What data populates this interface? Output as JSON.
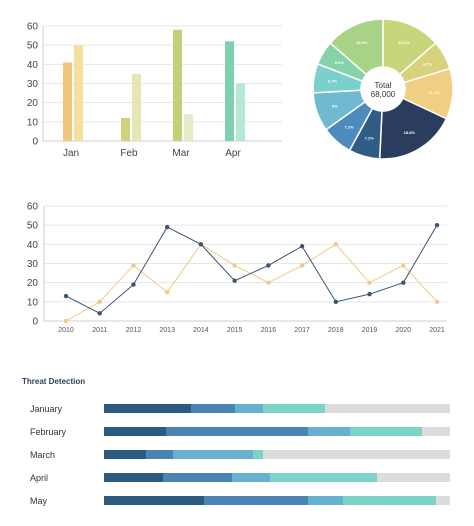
{
  "chart_data": [
    {
      "type": "bar",
      "categories": [
        "Jan",
        "Feb",
        "Mar",
        "Apr"
      ],
      "ylim": [
        0,
        60
      ],
      "yticks": [
        0,
        10,
        20,
        30,
        40,
        50,
        60
      ],
      "grid": true,
      "series": [
        {
          "values": [
            41,
            12,
            58,
            52
          ],
          "colors": [
            "#f2c77b",
            "#cfd27a",
            "#c2d077",
            "#7fd0ac"
          ]
        },
        {
          "values": [
            50,
            35,
            14,
            30
          ],
          "colors": [
            "#f6de9c",
            "#e6e7b5",
            "#e6eac6",
            "#b5e9d2"
          ]
        }
      ]
    },
    {
      "type": "pie",
      "center_label": "Total",
      "center_value": "68,000",
      "slices": [
        {
          "label": "13.6%",
          "value": 13.6,
          "color": "#c7d57b"
        },
        {
          "label": "6.7%",
          "value": 6.7,
          "color": "#d8d27d"
        },
        {
          "label": "11.7%",
          "value": 11.7,
          "color": "#f0cf84"
        },
        {
          "label": "18.8%",
          "value": 18.8,
          "color": "#2b3d5f"
        },
        {
          "label": "7.2%",
          "value": 7.2,
          "color": "#2f5d86"
        },
        {
          "label": "7.2%",
          "value": 7.2,
          "color": "#4e8bbd"
        },
        {
          "label": "9%",
          "value": 9.0,
          "color": "#6fb9d1"
        },
        {
          "label": "6.7%",
          "value": 6.7,
          "color": "#79d0cc"
        },
        {
          "label": "5.6%",
          "value": 5.6,
          "color": "#86d3a9"
        },
        {
          "label": "13.6%",
          "value": 13.6,
          "color": "#a8d386"
        }
      ]
    },
    {
      "type": "line",
      "x": [
        "2010",
        "2011",
        "2012",
        "2013",
        "2014",
        "2015",
        "2016",
        "2017",
        "2018",
        "2019",
        "2020",
        "2021"
      ],
      "ylim": [
        0,
        60
      ],
      "yticks": [
        0,
        10,
        20,
        30,
        40,
        50,
        60
      ],
      "grid": true,
      "series": [
        {
          "values": [
            13,
            4,
            19,
            49,
            40,
            21,
            29,
            39,
            10,
            14,
            20,
            50
          ],
          "color": "#3b5470"
        },
        {
          "values": [
            0,
            10,
            29,
            15,
            40,
            29,
            20,
            29,
            40,
            20,
            29,
            10
          ],
          "color": "#f1c98a"
        }
      ]
    },
    {
      "type": "bar",
      "orientation": "horizontal-stacked",
      "title": "Threat Detection",
      "categories": [
        "January",
        "February",
        "March",
        "April",
        "May"
      ],
      "segment_colors": [
        "#2d5a7f",
        "#4a84b4",
        "#66b0d0",
        "#7dd3c8",
        "#dcdcdc"
      ],
      "rows": [
        [
          25,
          13,
          8,
          18,
          36
        ],
        [
          18,
          41,
          12,
          21,
          8
        ],
        [
          12,
          8,
          23,
          3,
          54
        ],
        [
          17,
          20,
          11,
          31,
          21
        ],
        [
          29,
          30,
          10,
          27,
          4
        ]
      ]
    }
  ]
}
